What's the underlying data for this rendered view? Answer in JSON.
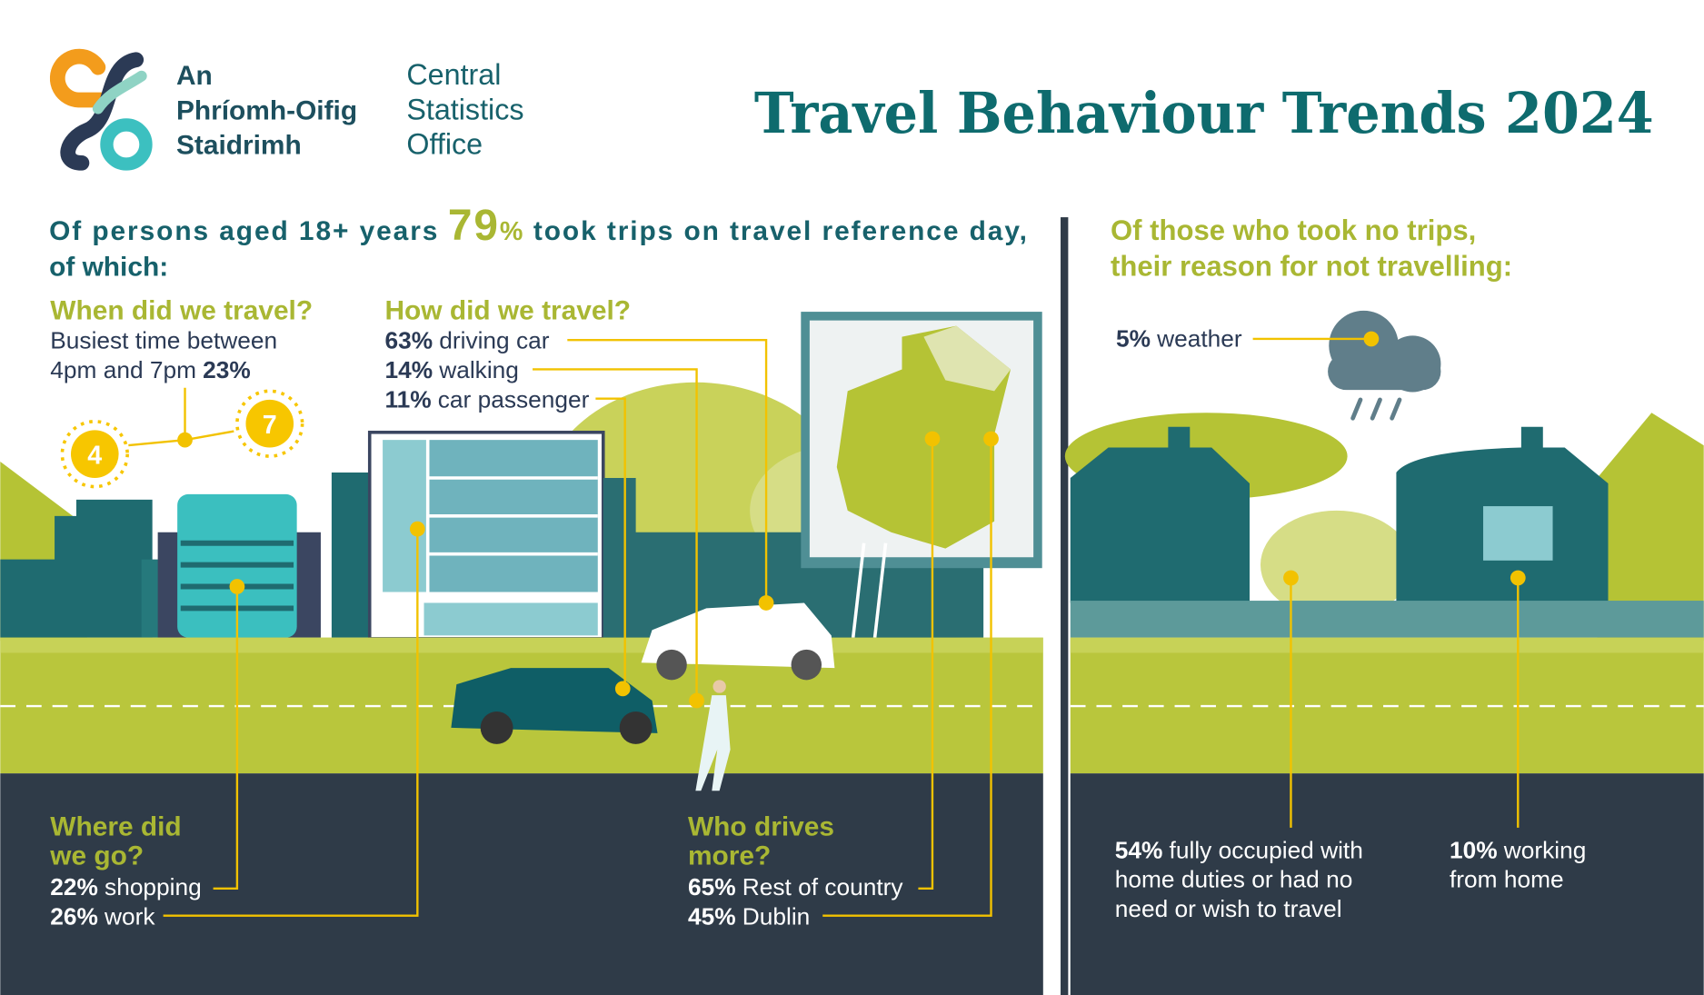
{
  "logo": {
    "irish": [
      "An",
      "Phríomh-Oifig",
      "Staidrimh"
    ],
    "english": [
      "Central",
      "Statistics",
      "Office"
    ]
  },
  "title": "Travel Behaviour Trends 2024",
  "left": {
    "intro": {
      "before": "Of persons aged 18+ years",
      "figure": "79",
      "unit": "%",
      "after": "took trips on travel reference day,",
      "end": "of which:"
    },
    "when": {
      "heading": "When did we travel?",
      "lines": [
        "Busiest time between",
        "4pm and 7pm"
      ],
      "stat": "23%",
      "suns": [
        "4",
        "7"
      ]
    },
    "how": {
      "heading": "How did we travel?",
      "items": [
        {
          "stat": "63%",
          "label": "driving car"
        },
        {
          "stat": "14%",
          "label": "walking"
        },
        {
          "stat": "11%",
          "label": "car passenger"
        }
      ]
    },
    "where": {
      "heading": [
        "Where did",
        "we go?"
      ],
      "items": [
        {
          "stat": "22%",
          "label": "shopping"
        },
        {
          "stat": "26%",
          "label": "work"
        }
      ]
    },
    "who": {
      "heading": [
        "Who drives",
        "more?"
      ],
      "items": [
        {
          "stat": "65%",
          "label": "Rest of country"
        },
        {
          "stat": "45%",
          "label": "Dublin"
        }
      ]
    }
  },
  "right": {
    "heading": [
      "Of those who took no trips,",
      "their reason for not travelling:"
    ],
    "items": [
      {
        "stat": "5%",
        "lines": [
          "weather"
        ]
      },
      {
        "stat": "54%",
        "lines": [
          "fully occupied with",
          "home duties or had no",
          "need or wish to travel"
        ]
      },
      {
        "stat": "10%",
        "lines": [
          "working",
          "from home"
        ]
      }
    ]
  }
}
